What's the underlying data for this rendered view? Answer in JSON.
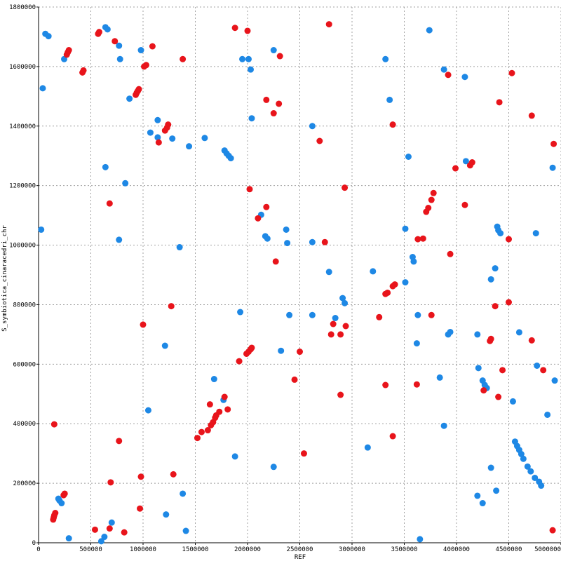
{
  "chart_data": {
    "type": "scatter",
    "title": "",
    "xlabel": "REF",
    "ylabel": "S_symbiotica_cinaracedri_chr",
    "xlim": [
      0,
      5000000
    ],
    "ylim": [
      0,
      1800000
    ],
    "xticks": [
      0,
      500000,
      1000000,
      1500000,
      2000000,
      2500000,
      3000000,
      3500000,
      4000000,
      4500000,
      5000000
    ],
    "yticks": [
      0,
      200000,
      400000,
      600000,
      800000,
      1000000,
      1200000,
      1400000,
      1600000,
      1800000
    ],
    "grid": true,
    "colors": {
      "blue": "#1e88e5",
      "red": "#e8141b"
    },
    "series": [
      {
        "color": "blue",
        "points": [
          [
            65000,
            1710000
          ],
          [
            95000,
            1702000
          ],
          [
            40000,
            1527000
          ],
          [
            245000,
            1625000
          ],
          [
            25000,
            1052000
          ],
          [
            640000,
            1732000
          ],
          [
            660000,
            1725000
          ],
          [
            770000,
            1670000
          ],
          [
            780000,
            1625000
          ],
          [
            980000,
            1655000
          ],
          [
            870000,
            1492000
          ],
          [
            640000,
            1262000
          ],
          [
            830000,
            1208000
          ],
          [
            770000,
            1018000
          ],
          [
            1140000,
            1420000
          ],
          [
            1140000,
            1362000
          ],
          [
            1070000,
            1378000
          ],
          [
            1280000,
            1358000
          ],
          [
            1440000,
            1332000
          ],
          [
            1590000,
            1360000
          ],
          [
            1350000,
            993000
          ],
          [
            1780000,
            1318000
          ],
          [
            1800000,
            1308000
          ],
          [
            1820000,
            1300000
          ],
          [
            1840000,
            1292000
          ],
          [
            1950000,
            1625000
          ],
          [
            2010000,
            1625000
          ],
          [
            2030000,
            1590000
          ],
          [
            2250000,
            1655000
          ],
          [
            2040000,
            1426000
          ],
          [
            2130000,
            1102000
          ],
          [
            2170000,
            1030000
          ],
          [
            2190000,
            1022000
          ],
          [
            2370000,
            1052000
          ],
          [
            2380000,
            1007000
          ],
          [
            2620000,
            1400000
          ],
          [
            2620000,
            1010000
          ],
          [
            1930000,
            775000
          ],
          [
            2400000,
            765000
          ],
          [
            2620000,
            765000
          ],
          [
            2780000,
            910000
          ],
          [
            2840000,
            755000
          ],
          [
            2910000,
            822000
          ],
          [
            2930000,
            805000
          ],
          [
            1210000,
            662000
          ],
          [
            1050000,
            445000
          ],
          [
            1680000,
            550000
          ],
          [
            1770000,
            480000
          ],
          [
            2320000,
            645000
          ],
          [
            1880000,
            290000
          ],
          [
            2250000,
            255000
          ],
          [
            3150000,
            320000
          ],
          [
            3320000,
            1625000
          ],
          [
            3360000,
            1488000
          ],
          [
            3540000,
            1297000
          ],
          [
            3200000,
            912000
          ],
          [
            3510000,
            1055000
          ],
          [
            3510000,
            875000
          ],
          [
            3580000,
            960000
          ],
          [
            3590000,
            945000
          ],
          [
            3740000,
            1722000
          ],
          [
            3880000,
            1590000
          ],
          [
            4080000,
            1565000
          ],
          [
            4090000,
            1282000
          ],
          [
            4390000,
            1062000
          ],
          [
            4400000,
            1050000
          ],
          [
            4420000,
            1040000
          ],
          [
            4760000,
            1040000
          ],
          [
            4920000,
            1260000
          ],
          [
            4370000,
            922000
          ],
          [
            4330000,
            885000
          ],
          [
            3630000,
            765000
          ],
          [
            3620000,
            670000
          ],
          [
            3920000,
            700000
          ],
          [
            3940000,
            708000
          ],
          [
            4200000,
            700000
          ],
          [
            4600000,
            707000
          ],
          [
            4210000,
            587000
          ],
          [
            4250000,
            545000
          ],
          [
            4270000,
            530000
          ],
          [
            4290000,
            520000
          ],
          [
            4540000,
            475000
          ],
          [
            4770000,
            595000
          ],
          [
            4940000,
            545000
          ],
          [
            4870000,
            430000
          ],
          [
            3840000,
            555000
          ],
          [
            3880000,
            393000
          ],
          [
            4330000,
            252000
          ],
          [
            4560000,
            340000
          ],
          [
            4580000,
            325000
          ],
          [
            4600000,
            312000
          ],
          [
            4620000,
            298000
          ],
          [
            4640000,
            282000
          ],
          [
            4680000,
            256000
          ],
          [
            4710000,
            240000
          ],
          [
            4750000,
            218000
          ],
          [
            4790000,
            205000
          ],
          [
            4810000,
            192000
          ],
          [
            4380000,
            175000
          ],
          [
            4200000,
            158000
          ],
          [
            4250000,
            133000
          ],
          [
            190000,
            148000
          ],
          [
            200000,
            142000
          ],
          [
            220000,
            133000
          ],
          [
            290000,
            15000
          ],
          [
            600000,
            5000
          ],
          [
            630000,
            20000
          ],
          [
            700000,
            68000
          ],
          [
            1220000,
            95000
          ],
          [
            1380000,
            165000
          ],
          [
            1410000,
            40000
          ],
          [
            3650000,
            12000
          ]
        ]
      },
      {
        "color": "red",
        "points": [
          [
            270000,
            1640000
          ],
          [
            280000,
            1648000
          ],
          [
            290000,
            1655000
          ],
          [
            420000,
            1580000
          ],
          [
            430000,
            1587000
          ],
          [
            570000,
            1710000
          ],
          [
            580000,
            1716000
          ],
          [
            730000,
            1685000
          ],
          [
            1090000,
            1668000
          ],
          [
            1010000,
            1600000
          ],
          [
            1030000,
            1605000
          ],
          [
            930000,
            1505000
          ],
          [
            940000,
            1512000
          ],
          [
            950000,
            1518000
          ],
          [
            960000,
            1524000
          ],
          [
            1150000,
            1345000
          ],
          [
            1210000,
            1385000
          ],
          [
            1230000,
            1395000
          ],
          [
            1240000,
            1405000
          ],
          [
            1380000,
            1625000
          ],
          [
            1880000,
            1730000
          ],
          [
            2000000,
            1720000
          ],
          [
            2310000,
            1635000
          ],
          [
            2780000,
            1742000
          ],
          [
            2180000,
            1488000
          ],
          [
            2250000,
            1443000
          ],
          [
            2300000,
            1475000
          ],
          [
            2690000,
            1350000
          ],
          [
            2020000,
            1188000
          ],
          [
            2180000,
            1128000
          ],
          [
            2100000,
            1090000
          ],
          [
            2270000,
            945000
          ],
          [
            2740000,
            1010000
          ],
          [
            2930000,
            1193000
          ],
          [
            3390000,
            1405000
          ],
          [
            3920000,
            1572000
          ],
          [
            4530000,
            1578000
          ],
          [
            3990000,
            1258000
          ],
          [
            4410000,
            1480000
          ],
          [
            4720000,
            1435000
          ],
          [
            4930000,
            1340000
          ],
          [
            4130000,
            1268000
          ],
          [
            4150000,
            1278000
          ],
          [
            4080000,
            1135000
          ],
          [
            3780000,
            1175000
          ],
          [
            3760000,
            1152000
          ],
          [
            3730000,
            1125000
          ],
          [
            3710000,
            1112000
          ],
          [
            3630000,
            1020000
          ],
          [
            3680000,
            1022000
          ],
          [
            3320000,
            836000
          ],
          [
            3340000,
            840000
          ],
          [
            3390000,
            862000
          ],
          [
            3410000,
            868000
          ],
          [
            3940000,
            970000
          ],
          [
            4500000,
            1020000
          ],
          [
            4500000,
            808000
          ],
          [
            4370000,
            795000
          ],
          [
            3760000,
            765000
          ],
          [
            4320000,
            678000
          ],
          [
            4330000,
            685000
          ],
          [
            4720000,
            680000
          ],
          [
            4260000,
            512000
          ],
          [
            4440000,
            580000
          ],
          [
            4830000,
            580000
          ],
          [
            4400000,
            490000
          ],
          [
            3260000,
            758000
          ],
          [
            3320000,
            530000
          ],
          [
            3620000,
            532000
          ],
          [
            3390000,
            358000
          ],
          [
            2800000,
            700000
          ],
          [
            2820000,
            735000
          ],
          [
            2890000,
            700000
          ],
          [
            2940000,
            728000
          ],
          [
            2890000,
            497000
          ],
          [
            2500000,
            642000
          ],
          [
            2450000,
            548000
          ],
          [
            2540000,
            300000
          ],
          [
            1920000,
            610000
          ],
          [
            1990000,
            635000
          ],
          [
            2010000,
            642000
          ],
          [
            2030000,
            650000
          ],
          [
            2040000,
            655000
          ],
          [
            1640000,
            465000
          ],
          [
            1650000,
            395000
          ],
          [
            1670000,
            405000
          ],
          [
            1690000,
            420000
          ],
          [
            1700000,
            428000
          ],
          [
            1730000,
            440000
          ],
          [
            1780000,
            490000
          ],
          [
            1810000,
            448000
          ],
          [
            1520000,
            352000
          ],
          [
            1560000,
            372000
          ],
          [
            1620000,
            378000
          ],
          [
            1270000,
            795000
          ],
          [
            1000000,
            733000
          ],
          [
            980000,
            222000
          ],
          [
            970000,
            115000
          ],
          [
            1290000,
            230000
          ],
          [
            150000,
            398000
          ],
          [
            770000,
            342000
          ],
          [
            680000,
            1140000
          ],
          [
            690000,
            203000
          ],
          [
            680000,
            48000
          ],
          [
            540000,
            44000
          ],
          [
            820000,
            35000
          ],
          [
            140000,
            78000
          ],
          [
            145000,
            85000
          ],
          [
            150000,
            92000
          ],
          [
            160000,
            100000
          ],
          [
            240000,
            160000
          ],
          [
            250000,
            165000
          ],
          [
            4920000,
            42000
          ]
        ]
      }
    ]
  }
}
